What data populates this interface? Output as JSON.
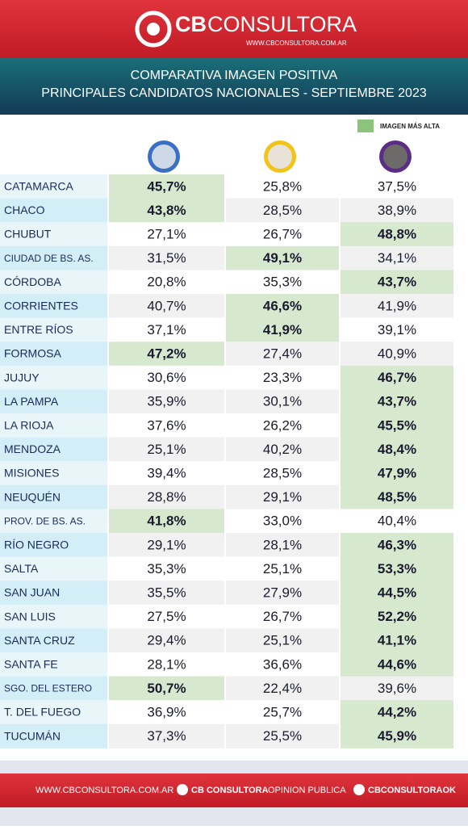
{
  "header": {
    "logo_bold": "CB",
    "logo_text": "CONSULTORA",
    "website": "WWW.CBCONSULTORA.COM.AR"
  },
  "title": {
    "line1": "COMPARATIVA IMAGEN POSITIVA",
    "line2": "PRINCIPALES CANDIDATOS NACIONALES - SEPTIEMBRE 2023"
  },
  "legend": {
    "label": "IMAGEN MÁS ALTA",
    "color": "#8cc47e"
  },
  "table": {
    "rows": [
      [
        "CATAMARCA",
        "45,7%",
        "25,8%",
        "37,5%"
      ],
      [
        "CHACO",
        "43,8%",
        "28,5%",
        "38,9%"
      ],
      [
        "CHUBUT",
        "27,1%",
        "26,7%",
        "48,8%"
      ],
      [
        "CIUDAD DE BS. AS.",
        "31,5%",
        "49,1%",
        "34,1%"
      ],
      [
        "CÓRDOBA",
        "20,8%",
        "35,3%",
        "43,7%"
      ],
      [
        "CORRIENTES",
        "40,7%",
        "46,6%",
        "41,9%"
      ],
      [
        "ENTRE RÍOS",
        "37,1%",
        "41,9%",
        "39,1%"
      ],
      [
        "FORMOSA",
        "47,2%",
        "27,4%",
        "40,9%"
      ],
      [
        "JUJUY",
        "30,6%",
        "23,3%",
        "46,7%"
      ],
      [
        "LA PAMPA",
        "35,9%",
        "30,1%",
        "43,7%"
      ],
      [
        "LA RIOJA",
        "37,6%",
        "26,2%",
        "45,5%"
      ],
      [
        "MENDOZA",
        "25,1%",
        "40,2%",
        "48,4%"
      ],
      [
        "MISIONES",
        "39,4%",
        "28,5%",
        "47,9%"
      ],
      [
        "NEUQUÉN",
        "28,8%",
        "29,1%",
        "48,5%"
      ],
      [
        "PROV. DE BS. AS.",
        "41,8%",
        "33,0%",
        "40,4%"
      ],
      [
        "RÍO NEGRO",
        "29,1%",
        "28,1%",
        "46,3%"
      ],
      [
        "SALTA",
        "35,3%",
        "25,1%",
        "53,3%"
      ],
      [
        "SAN JUAN",
        "35,5%",
        "27,9%",
        "44,5%"
      ],
      [
        "SAN LUIS",
        "27,5%",
        "26,7%",
        "52,2%"
      ],
      [
        "SANTA CRUZ",
        "29,4%",
        "25,1%",
        "41,1%"
      ],
      [
        "SANTA FE",
        "28,1%",
        "36,6%",
        "44,6%"
      ],
      [
        "SGO. DEL ESTERO",
        "50,7%",
        "22,4%",
        "39,6%"
      ],
      [
        "T. DEL FUEGO",
        "36,9%",
        "25,7%",
        "44,2%"
      ],
      [
        "TUCUMÁN",
        "37,3%",
        "25,5%",
        "45,9%"
      ]
    ]
  },
  "footer": {
    "website": "WWW.CBCONSULTORA.COM.AR",
    "facebook_bold": "CB CONSULTORA",
    "facebook_text": "OPINION PUBLICA",
    "twitter": "CBCONSULTORAOK"
  }
}
